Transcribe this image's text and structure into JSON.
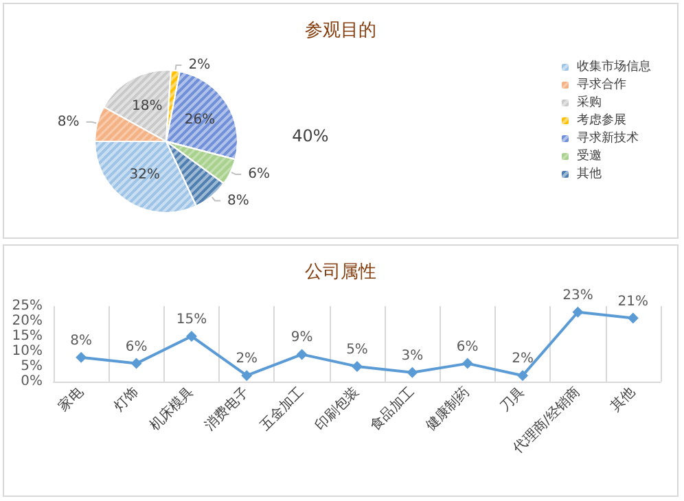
{
  "chart_data": [
    {
      "type": "pie",
      "title": "参观目的",
      "categories": [
        "收集市场信息",
        "寻求合作",
        "采购",
        "考虑参展",
        "寻求新技术",
        "受邀",
        "其他"
      ],
      "values": [
        32,
        8,
        18,
        2,
        26,
        6,
        8
      ],
      "colors": [
        "#9dc3e6",
        "#f4b183",
        "#c9c9c9",
        "#ffc000",
        "#6f8fd8",
        "#a9d18e",
        "#4f7fb0"
      ],
      "value_labels": [
        "32%",
        "8%",
        "18%",
        "2%",
        "26%",
        "6%",
        "8%"
      ],
      "annotations": [
        "40%"
      ],
      "legend": "right"
    },
    {
      "type": "line",
      "title": "公司属性",
      "categories": [
        "家电",
        "灯饰",
        "机床模具",
        "消费电子",
        "五金加工",
        "印刷包装",
        "食品加工",
        "健康制药",
        "刀具",
        "代理商/经销商",
        "其他"
      ],
      "series": [
        {
          "color": "#5b9bd5",
          "values": [
            8,
            6,
            15,
            2,
            9,
            5,
            3,
            6,
            2,
            23,
            21
          ]
        }
      ],
      "value_labels": [
        "8%",
        "6%",
        "15%",
        "2%",
        "9%",
        "5%",
        "3%",
        "6%",
        "2%",
        "23%",
        "21%"
      ],
      "ylim": [
        0,
        25
      ],
      "yticks": [
        {
          "value": 0,
          "label": "0%"
        },
        {
          "value": 5,
          "label": "5%"
        },
        {
          "value": 10,
          "label": "10%"
        },
        {
          "value": 15,
          "label": "15%"
        },
        {
          "value": 20,
          "label": "20%"
        },
        {
          "value": 25,
          "label": "25%"
        }
      ],
      "grid": "x",
      "marker": "diamond",
      "line_style": "solid",
      "legend": false
    }
  ]
}
